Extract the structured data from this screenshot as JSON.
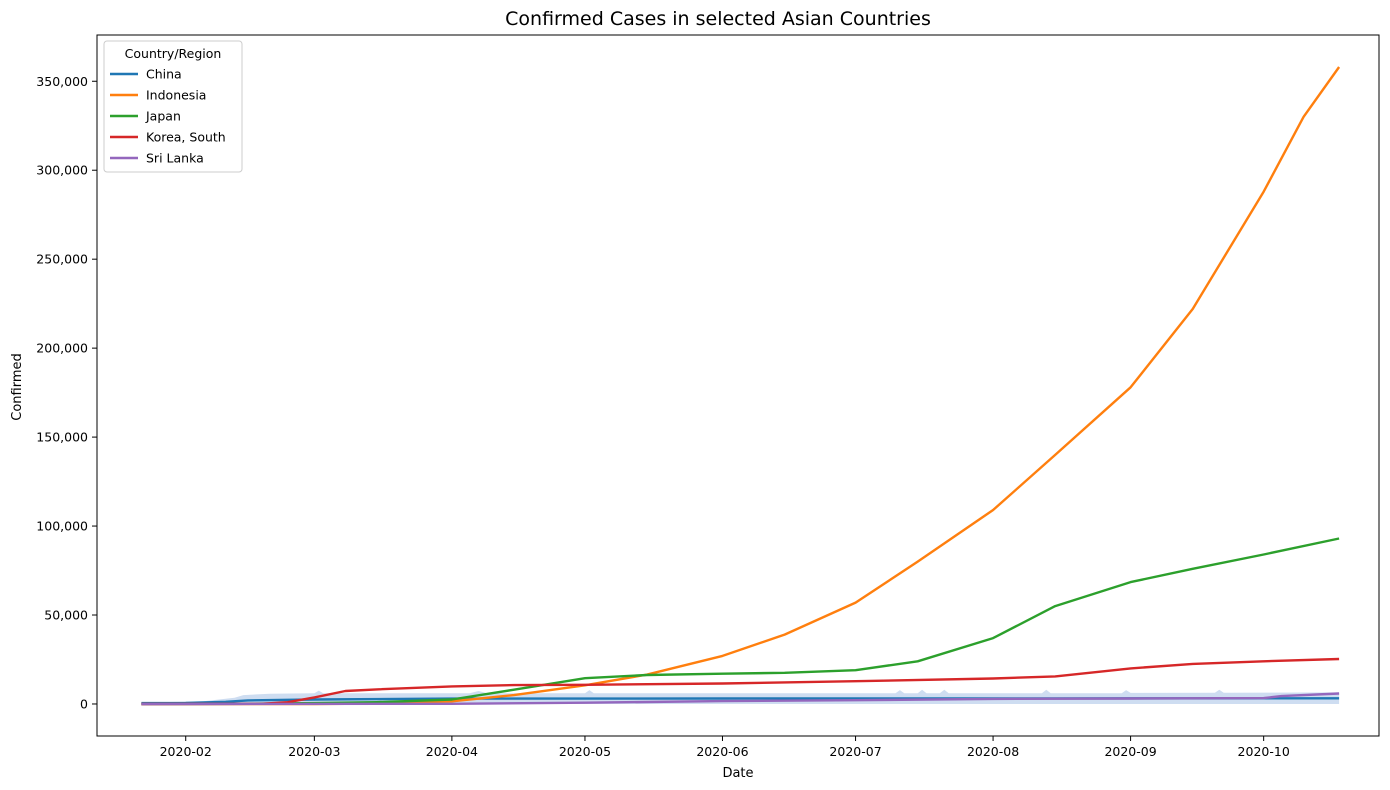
{
  "chart_data": {
    "type": "line",
    "title": "Confirmed Cases in selected Asian Countries",
    "xlabel": "Date",
    "ylabel": "Confirmed",
    "xlim": [
      "2020-01-12",
      "2020-10-27"
    ],
    "ylim": [
      -18000,
      376000
    ],
    "x_ticks": [
      "2020-02",
      "2020-03",
      "2020-04",
      "2020-05",
      "2020-06",
      "2020-07",
      "2020-08",
      "2020-09",
      "2020-10"
    ],
    "y_ticks": [
      "0",
      "50,000",
      "100,000",
      "150,000",
      "200,000",
      "250,000",
      "300,000",
      "350,000"
    ],
    "y_tick_values": [
      0,
      50000,
      100000,
      150000,
      200000,
      250000,
      300000,
      350000
    ],
    "grid": false,
    "legend": {
      "title": "Country/Region",
      "placement": "top-left"
    },
    "band_color": "#aec7e8",
    "series": [
      {
        "name": "China",
        "color": "#1f77b4",
        "points": [
          [
            "2020-01-22",
            500
          ],
          [
            "2020-02-01",
            600
          ],
          [
            "2020-02-10",
            1200
          ],
          [
            "2020-02-15",
            2000
          ],
          [
            "2020-03-01",
            2500
          ],
          [
            "2020-04-01",
            3000
          ],
          [
            "2020-06-01",
            3100
          ],
          [
            "2020-10-18",
            3200
          ]
        ]
      },
      {
        "name": "Indonesia",
        "color": "#ff7f0e",
        "points": [
          [
            "2020-01-22",
            0
          ],
          [
            "2020-03-01",
            0
          ],
          [
            "2020-03-15",
            200
          ],
          [
            "2020-04-01",
            1500
          ],
          [
            "2020-04-15",
            5000
          ],
          [
            "2020-05-01",
            10500
          ],
          [
            "2020-05-15",
            16500
          ],
          [
            "2020-06-01",
            27000
          ],
          [
            "2020-06-15",
            39000
          ],
          [
            "2020-07-01",
            57000
          ],
          [
            "2020-07-15",
            80000
          ],
          [
            "2020-08-01",
            109000
          ],
          [
            "2020-08-15",
            140000
          ],
          [
            "2020-09-01",
            178000
          ],
          [
            "2020-09-15",
            222000
          ],
          [
            "2020-10-01",
            288000
          ],
          [
            "2020-10-10",
            330000
          ],
          [
            "2020-10-18",
            358000
          ]
        ]
      },
      {
        "name": "Japan",
        "color": "#2ca02c",
        "points": [
          [
            "2020-01-22",
            0
          ],
          [
            "2020-02-15",
            100
          ],
          [
            "2020-03-01",
            500
          ],
          [
            "2020-03-15",
            1000
          ],
          [
            "2020-04-01",
            2500
          ],
          [
            "2020-04-15",
            8000
          ],
          [
            "2020-05-01",
            14500
          ],
          [
            "2020-05-15",
            16300
          ],
          [
            "2020-06-01",
            17000
          ],
          [
            "2020-06-15",
            17500
          ],
          [
            "2020-07-01",
            19000
          ],
          [
            "2020-07-15",
            24000
          ],
          [
            "2020-08-01",
            37000
          ],
          [
            "2020-08-15",
            55000
          ],
          [
            "2020-09-01",
            68500
          ],
          [
            "2020-09-15",
            76000
          ],
          [
            "2020-10-01",
            84000
          ],
          [
            "2020-10-18",
            93000
          ]
        ]
      },
      {
        "name": "Korea, South",
        "color": "#d62728",
        "points": [
          [
            "2020-01-22",
            0
          ],
          [
            "2020-02-18",
            100
          ],
          [
            "2020-02-24",
            1000
          ],
          [
            "2020-03-01",
            3700
          ],
          [
            "2020-03-08",
            7300
          ],
          [
            "2020-03-15",
            8200
          ],
          [
            "2020-04-01",
            9900
          ],
          [
            "2020-04-15",
            10600
          ],
          [
            "2020-05-01",
            10800
          ],
          [
            "2020-06-01",
            11500
          ],
          [
            "2020-07-01",
            12800
          ],
          [
            "2020-08-01",
            14300
          ],
          [
            "2020-08-15",
            15500
          ],
          [
            "2020-09-01",
            20000
          ],
          [
            "2020-09-15",
            22500
          ],
          [
            "2020-10-01",
            24000
          ],
          [
            "2020-10-18",
            25300
          ]
        ]
      },
      {
        "name": "Sri Lanka",
        "color": "#9467bd",
        "points": [
          [
            "2020-01-22",
            0
          ],
          [
            "2020-04-01",
            100
          ],
          [
            "2020-05-01",
            700
          ],
          [
            "2020-06-01",
            1600
          ],
          [
            "2020-07-01",
            2100
          ],
          [
            "2020-08-01",
            2850
          ],
          [
            "2020-09-01",
            3050
          ],
          [
            "2020-10-01",
            3300
          ],
          [
            "2020-10-05",
            4400
          ],
          [
            "2020-10-18",
            5900
          ]
        ]
      }
    ],
    "band": {
      "upper": [
        [
          "2020-01-22",
          800
        ],
        [
          "2020-02-05",
          1500
        ],
        [
          "2020-02-12",
          3500
        ],
        [
          "2020-02-14",
          5000
        ],
        [
          "2020-02-20",
          5800
        ],
        [
          "2020-03-01",
          6000
        ],
        [
          "2020-03-02",
          7500
        ],
        [
          "2020-03-03",
          6000
        ],
        [
          "2020-04-05",
          6000
        ],
        [
          "2020-04-07",
          7300
        ],
        [
          "2020-04-09",
          6000
        ],
        [
          "2020-05-01",
          6000
        ],
        [
          "2020-05-02",
          7800
        ],
        [
          "2020-05-03",
          6000
        ],
        [
          "2020-07-10",
          6000
        ],
        [
          "2020-07-11",
          7800
        ],
        [
          "2020-07-12",
          6000
        ],
        [
          "2020-07-15",
          6000
        ],
        [
          "2020-07-16",
          8000
        ],
        [
          "2020-07-17",
          6000
        ],
        [
          "2020-07-20",
          6000
        ],
        [
          "2020-07-21",
          8000
        ],
        [
          "2020-07-22",
          6000
        ],
        [
          "2020-08-12",
          6000
        ],
        [
          "2020-08-13",
          8000
        ],
        [
          "2020-08-14",
          6000
        ],
        [
          "2020-08-30",
          6000
        ],
        [
          "2020-08-31",
          7800
        ],
        [
          "2020-09-01",
          6200
        ],
        [
          "2020-09-20",
          6300
        ],
        [
          "2020-09-21",
          8000
        ],
        [
          "2020-09-22",
          6300
        ],
        [
          "2020-10-18",
          6500
        ]
      ],
      "lower": [
        [
          "2020-01-22",
          0
        ],
        [
          "2020-10-18",
          0
        ]
      ]
    }
  }
}
